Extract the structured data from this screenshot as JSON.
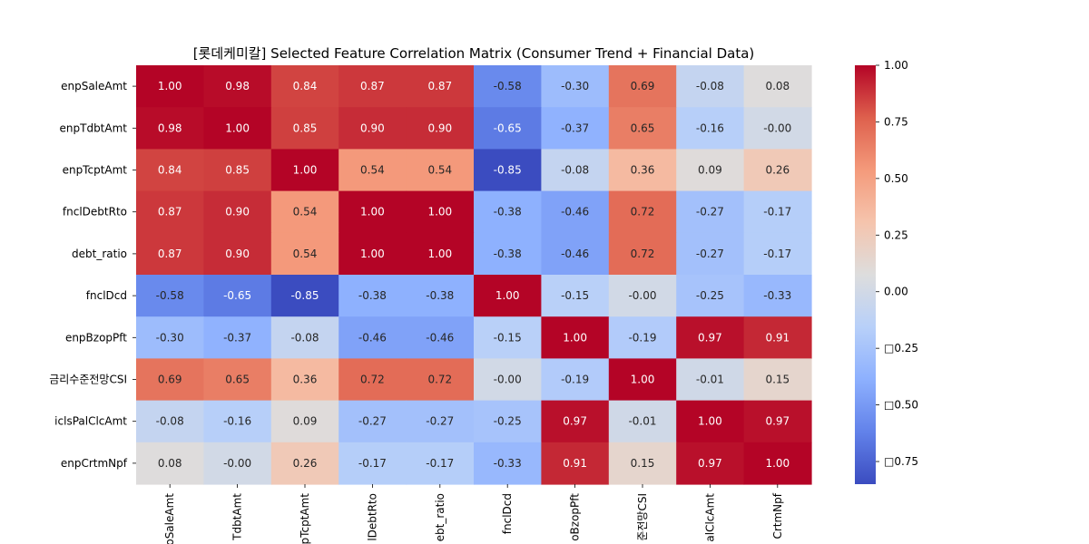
{
  "chart_data": {
    "type": "heatmap",
    "title": "[롯데케미칼] Selected Feature Correlation Matrix (Consumer Trend + Financial Data)",
    "rows": [
      "enpSaleAmt",
      "enpTdbtAmt",
      "enpTcptAmt",
      "fnclDebtRto",
      "debt_ratio",
      "fnclDcd",
      "enpBzopPft",
      "금리수준전망CSI",
      "iclsPalClcAmt",
      "enpCrtmNpf"
    ],
    "columns": [
      "enpSaleAmt",
      "enpTdbtAmt",
      "enpTcptAmt",
      "fnclDebtRto",
      "debt_ratio",
      "fnclDcd",
      "enpBzopPft",
      "금리수준전망CSI",
      "iclsPalClcAmt",
      "enpCrtmNpf"
    ],
    "x_tick_labels_visible": [
      "oSaleAmt",
      "TdbtAmt",
      "pTcptAmt",
      "lDebtRto",
      "ebt_ratio",
      "fnclDcd",
      "oBzopPft",
      "준전망CSI",
      "alClcAmt",
      "CrtmNpf"
    ],
    "cell_labels": [
      [
        "1.00",
        "0.98",
        "0.84",
        "0.87",
        "0.87",
        "-0.58",
        "-0.30",
        "0.69",
        "-0.08",
        "0.08"
      ],
      [
        "0.98",
        "1.00",
        "0.85",
        "0.90",
        "0.90",
        "-0.65",
        "-0.37",
        "0.65",
        "-0.16",
        "-0.00"
      ],
      [
        "0.84",
        "0.85",
        "1.00",
        "0.54",
        "0.54",
        "-0.85",
        "-0.08",
        "0.36",
        "0.09",
        "0.26"
      ],
      [
        "0.87",
        "0.90",
        "0.54",
        "1.00",
        "1.00",
        "-0.38",
        "-0.46",
        "0.72",
        "-0.27",
        "-0.17"
      ],
      [
        "0.87",
        "0.90",
        "0.54",
        "1.00",
        "1.00",
        "-0.38",
        "-0.46",
        "0.72",
        "-0.27",
        "-0.17"
      ],
      [
        "-0.58",
        "-0.65",
        "-0.85",
        "-0.38",
        "-0.38",
        "1.00",
        "-0.15",
        "-0.00",
        "-0.25",
        "-0.33"
      ],
      [
        "-0.30",
        "-0.37",
        "-0.08",
        "-0.46",
        "-0.46",
        "-0.15",
        "1.00",
        "-0.19",
        "0.97",
        "0.91"
      ],
      [
        "0.69",
        "0.65",
        "0.36",
        "0.72",
        "0.72",
        "-0.00",
        "-0.19",
        "1.00",
        "-0.01",
        "0.15"
      ],
      [
        "-0.08",
        "-0.16",
        "0.09",
        "-0.27",
        "-0.27",
        "-0.25",
        "0.97",
        "-0.01",
        "1.00",
        "0.97"
      ],
      [
        "0.08",
        "-0.00",
        "0.26",
        "-0.17",
        "-0.17",
        "-0.33",
        "0.91",
        "0.15",
        "0.97",
        "1.00"
      ]
    ],
    "colormap": "coolwarm",
    "vmin": -0.85,
    "vmax": 1.0,
    "colorbar_ticks": [
      1.0,
      0.75,
      0.5,
      0.25,
      0.0,
      -0.25,
      -0.5,
      -0.75
    ],
    "colorbar_tick_labels": [
      "1.00",
      "0.75",
      "0.50",
      "0.25",
      "0.00",
      "□0.25",
      "□0.50",
      "□0.75"
    ]
  }
}
